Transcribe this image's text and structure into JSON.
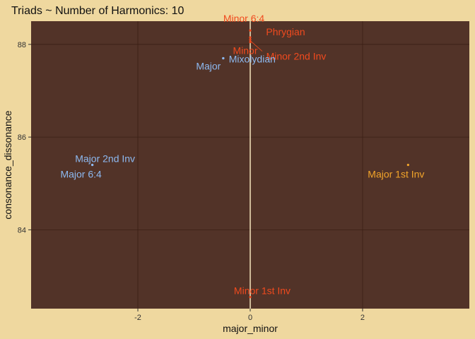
{
  "chart_data": {
    "type": "scatter",
    "title": "Triads ~ Number of Harmonics: 10",
    "xlabel": "major_minor",
    "ylabel": "consonance_dissonance",
    "xlim": [
      -3.9,
      3.9
    ],
    "ylim": [
      82.3,
      88.5
    ],
    "xticks": [
      -2,
      0,
      2
    ],
    "xtick_labels": [
      "-2",
      "0",
      "2"
    ],
    "yticks": [
      84,
      86,
      88
    ],
    "ytick_labels": [
      "84",
      "86",
      "88"
    ],
    "grid": true,
    "reference_line_x": 0,
    "colors": {
      "page_background": "#efd89f",
      "panel_background": "#523328",
      "grid": "#3a1f14",
      "reference_line": "#f6e6bd",
      "major": "#8db9f0",
      "minor": "#f04a1e",
      "inversion": "#f3a52a"
    },
    "points": [
      {
        "label": "Minor 6:4",
        "x": 0.0,
        "y": 88.3,
        "color_key": "minor"
      },
      {
        "label": "Phrygian",
        "x": 0.0,
        "y": 88.15,
        "color_key": "minor"
      },
      {
        "label": "Minor",
        "x": 0.0,
        "y": 88.1,
        "color_key": "minor"
      },
      {
        "label": "Minor 2nd Inv",
        "x": 0.0,
        "y": 88.05,
        "color_key": "minor"
      },
      {
        "label": "Mixolydian",
        "x": -0.48,
        "y": 87.7,
        "color_key": "major"
      },
      {
        "label": "Major",
        "x": -0.48,
        "y": 87.7,
        "color_key": "major"
      },
      {
        "label": "Major 2nd Inv",
        "x": -2.81,
        "y": 85.4,
        "color_key": "major"
      },
      {
        "label": "Major 6:4",
        "x": -2.81,
        "y": 85.4,
        "color_key": "major"
      },
      {
        "label": "Major 1st Inv",
        "x": 2.81,
        "y": 85.4,
        "color_key": "inversion"
      },
      {
        "label": "Minor 1st Inv",
        "x": 0.0,
        "y": 82.55,
        "color_key": "minor"
      }
    ]
  }
}
